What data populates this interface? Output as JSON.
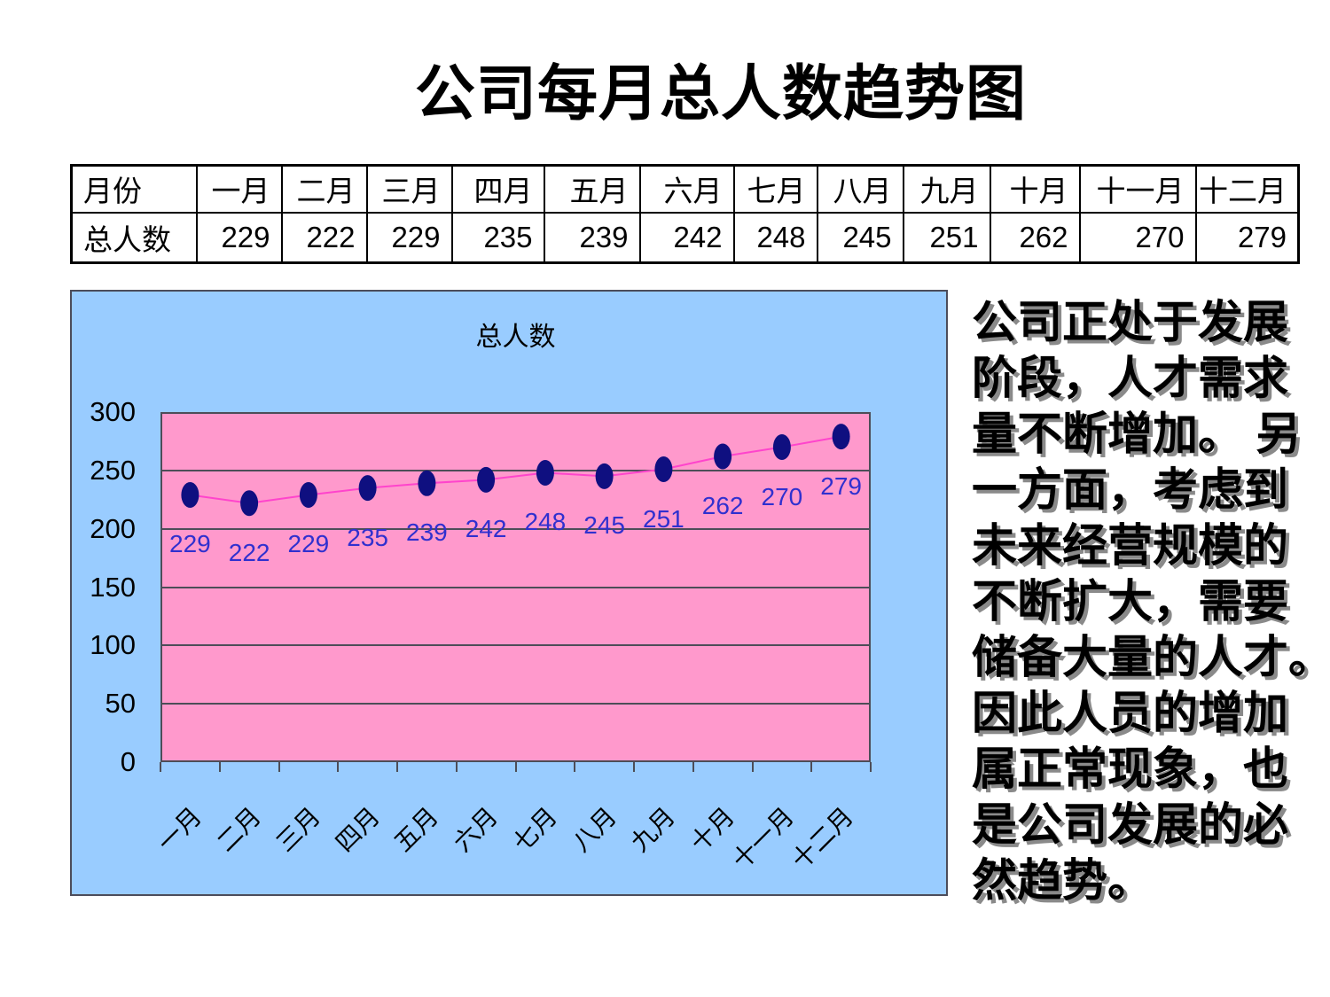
{
  "page": {
    "title": "公司每月总人数趋势图"
  },
  "table": {
    "row1_label": "月份",
    "row2_label": "总人数",
    "columns": [
      "一月",
      "二月",
      "三月",
      "四月",
      "五月",
      "六月",
      "七月",
      "八月",
      "九月",
      "十月",
      "十一月",
      "十二月"
    ],
    "values": [
      "229",
      "222",
      "229",
      "235",
      "239",
      "242",
      "248",
      "245",
      "251",
      "262",
      "270",
      "279"
    ]
  },
  "chart_data": {
    "type": "line",
    "title": "总人数",
    "series_name": "总人数",
    "categories": [
      "一月",
      "二月",
      "三月",
      "四月",
      "五月",
      "六月",
      "七月",
      "八月",
      "九月",
      "十月",
      "十一月",
      "十二月"
    ],
    "values": [
      229,
      222,
      229,
      235,
      239,
      242,
      248,
      245,
      251,
      262,
      270,
      279
    ],
    "xlabel": "",
    "ylabel": "",
    "ylim": [
      0,
      300
    ],
    "ytick_step": 50,
    "yticks": [
      0,
      50,
      100,
      150,
      200,
      250,
      300
    ],
    "grid": true,
    "legend_position": "none",
    "data_labels": true,
    "colors": {
      "chart_background": "#99ccff",
      "plot_background": "#ff99cc",
      "marker": "#0f0f80",
      "line": "#ff44cc",
      "data_label": "#3030cf",
      "gridline": "#4d4d58",
      "axis_text": "#000000"
    }
  },
  "commentary": {
    "text": "公司正处于发展\n阶段，人才需求\n量不断增加。 另\n一方面，考虑到\n未来经营规模的\n不断扩大，需要\n储备大量的人才。\n因此人员的增加\n属正常现象，也\n是公司发展的必\n然趋势。"
  }
}
